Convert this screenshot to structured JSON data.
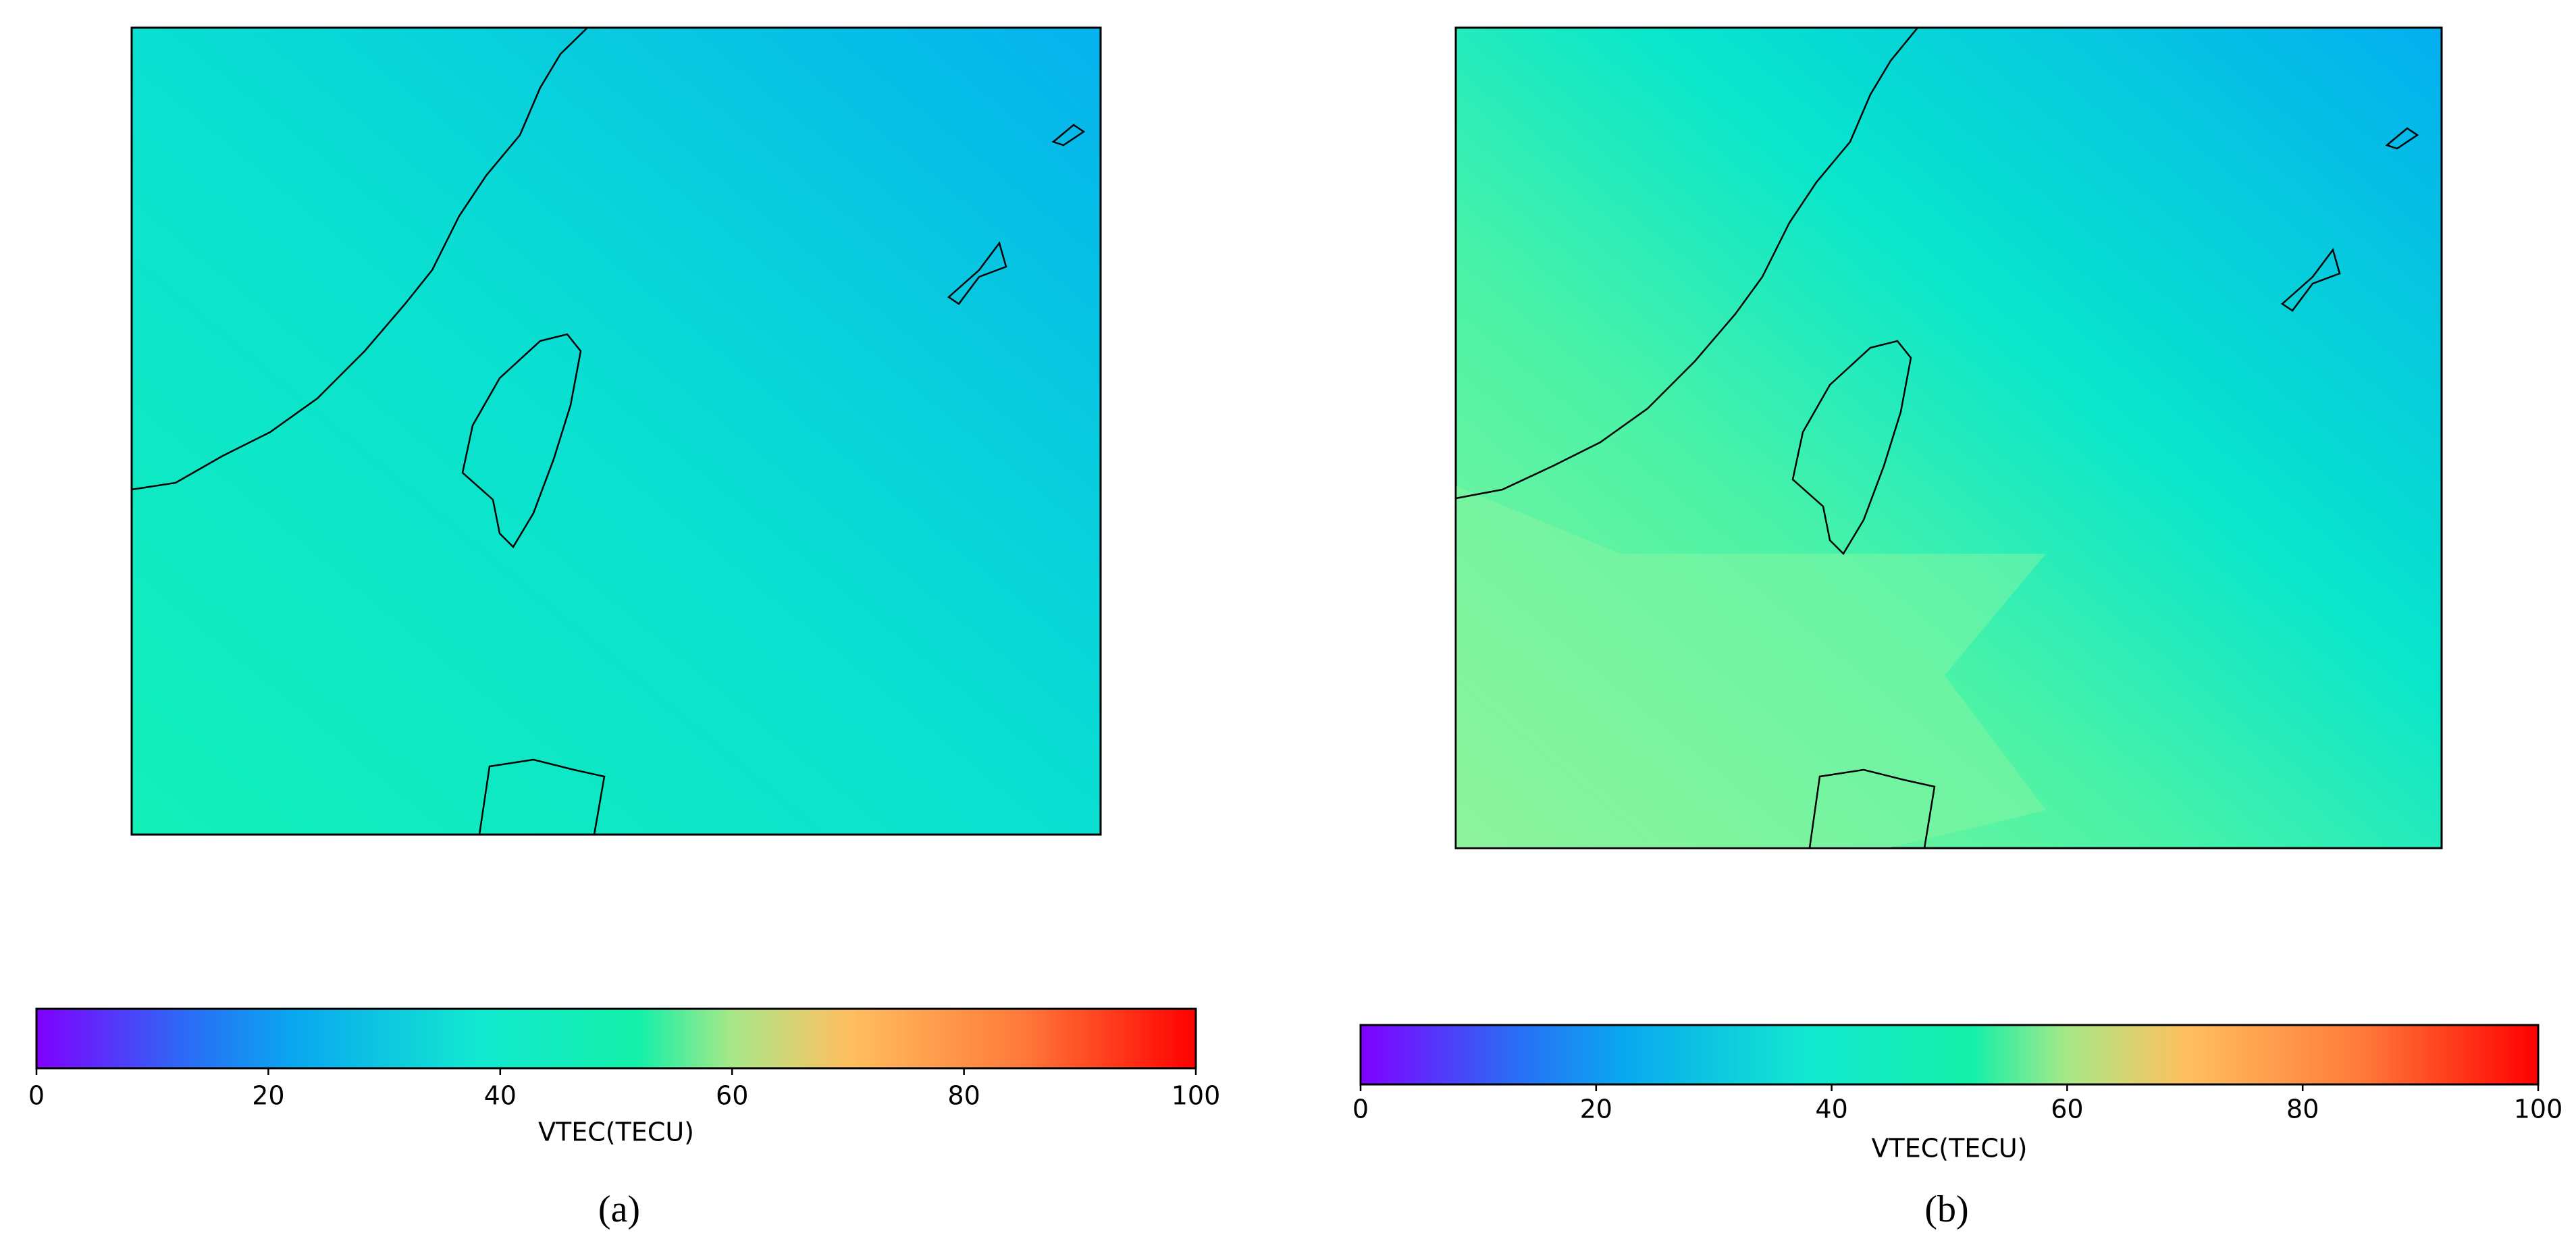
{
  "chart_data": [
    {
      "type": "colorbar",
      "caption": "(a)",
      "colorbar_label": "VTEC(TECU)",
      "colormap": "rainbow",
      "xlim": [
        0,
        100
      ],
      "xticks": [
        0,
        20,
        40,
        60,
        80,
        100
      ]
    },
    {
      "type": "colorbar",
      "caption": "(b)",
      "colorbar_label": "VTEC(TECU)",
      "colormap": "rainbow",
      "xlim": [
        0,
        100
      ],
      "xticks": [
        0,
        20,
        40,
        60,
        80,
        100
      ]
    }
  ]
}
